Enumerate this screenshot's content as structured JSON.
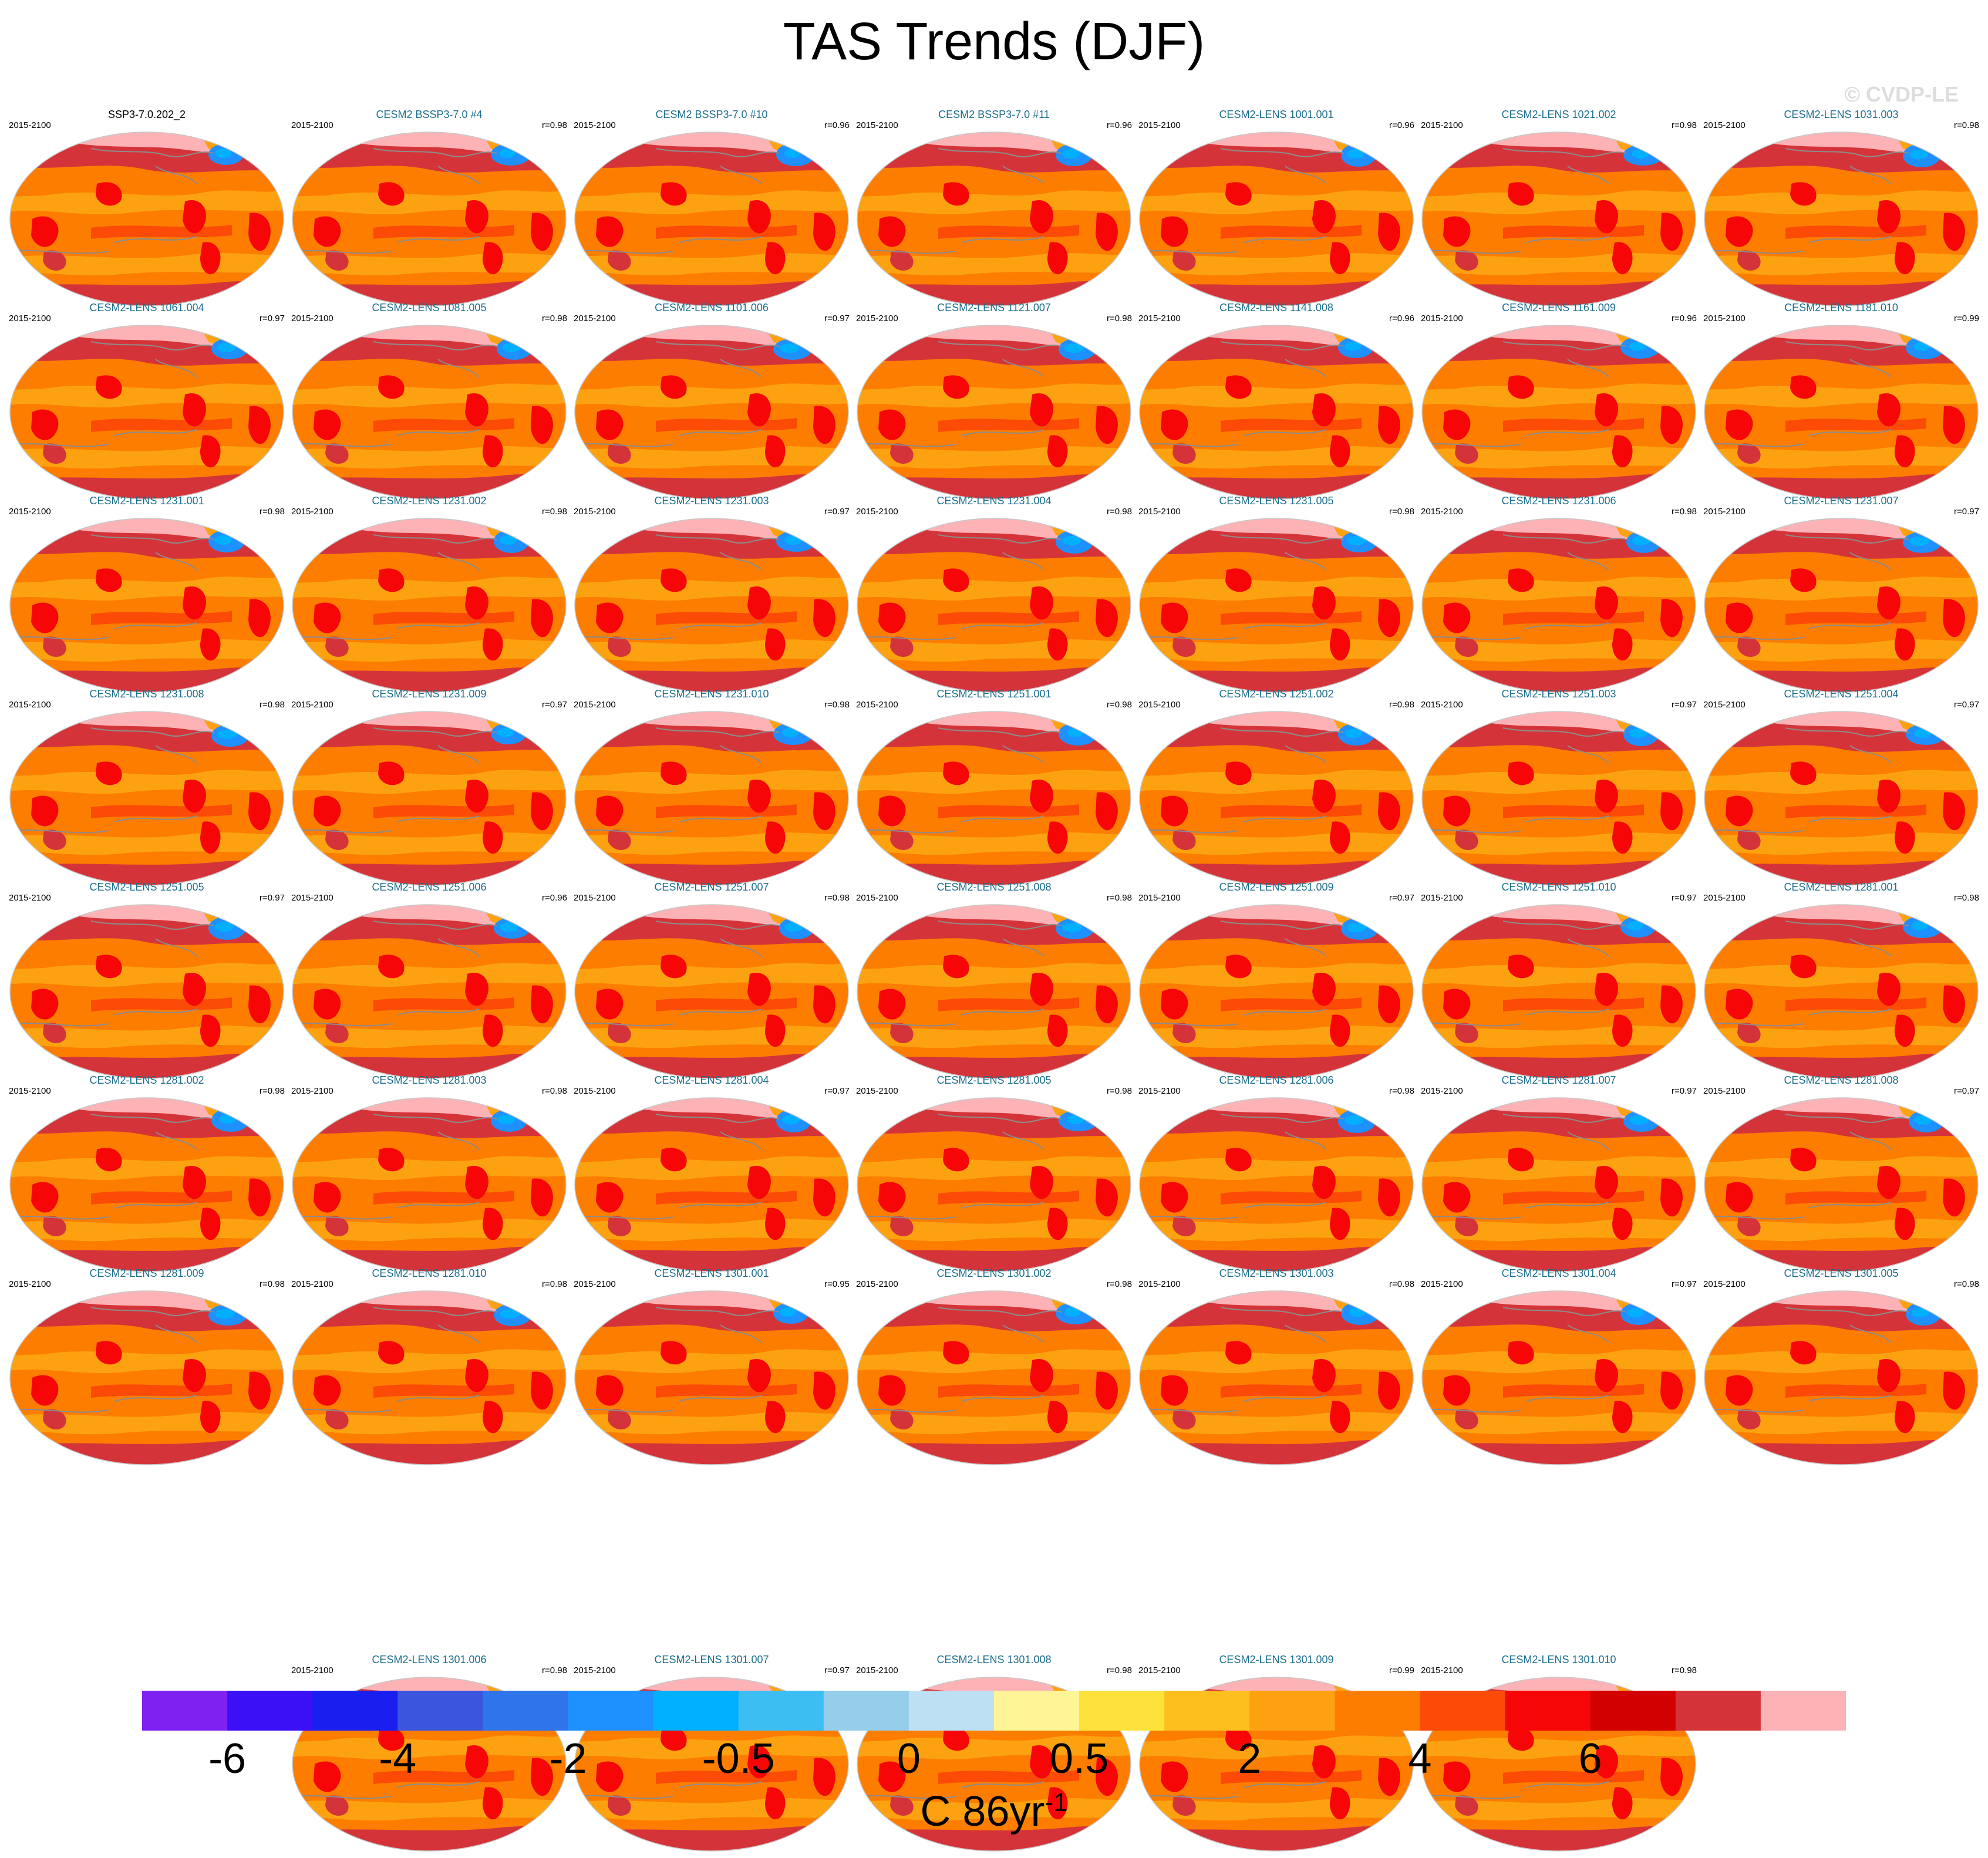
{
  "title": "TAS Trends (DJF)",
  "credit": "© CVDP-LE",
  "period": "2015-2100",
  "panels": [
    {
      "name": "SSP3-7.0.202_2",
      "r": ""
    },
    {
      "name": "CESM2 BSSP3-7.0 #4",
      "r": "r=0.98"
    },
    {
      "name": "CESM2 BSSP3-7.0 #10",
      "r": "r=0.96"
    },
    {
      "name": "CESM2 BSSP3-7.0 #11",
      "r": "r=0.96"
    },
    {
      "name": "CESM2-LENS 1001.001",
      "r": "r=0.96"
    },
    {
      "name": "CESM2-LENS 1021.002",
      "r": "r=0.98"
    },
    {
      "name": "CESM2-LENS 1031.003",
      "r": "r=0.98"
    },
    {
      "name": "CESM2-LENS 1061.004",
      "r": "r=0.97"
    },
    {
      "name": "CESM2-LENS 1081.005",
      "r": "r=0.98"
    },
    {
      "name": "CESM2-LENS 1101.006",
      "r": "r=0.97"
    },
    {
      "name": "CESM2-LENS 1121.007",
      "r": "r=0.98"
    },
    {
      "name": "CESM2-LENS 1141.008",
      "r": "r=0.96"
    },
    {
      "name": "CESM2-LENS 1161.009",
      "r": "r=0.96"
    },
    {
      "name": "CESM2-LENS 1181.010",
      "r": "r=0.99"
    },
    {
      "name": "CESM2-LENS 1231.001",
      "r": "r=0.98"
    },
    {
      "name": "CESM2-LENS 1231.002",
      "r": "r=0.98"
    },
    {
      "name": "CESM2-LENS 1231.003",
      "r": "r=0.97"
    },
    {
      "name": "CESM2-LENS 1231.004",
      "r": "r=0.98"
    },
    {
      "name": "CESM2-LENS 1231.005",
      "r": "r=0.98"
    },
    {
      "name": "CESM2-LENS 1231.006",
      "r": "r=0.98"
    },
    {
      "name": "CESM2-LENS 1231.007",
      "r": "r=0.97"
    },
    {
      "name": "CESM2-LENS 1231.008",
      "r": "r=0.98"
    },
    {
      "name": "CESM2-LENS 1231.009",
      "r": "r=0.97"
    },
    {
      "name": "CESM2-LENS 1231.010",
      "r": "r=0.98"
    },
    {
      "name": "CESM2-LENS 1251.001",
      "r": "r=0.98"
    },
    {
      "name": "CESM2-LENS 1251.002",
      "r": "r=0.98"
    },
    {
      "name": "CESM2-LENS 1251.003",
      "r": "r=0.97"
    },
    {
      "name": "CESM2-LENS 1251.004",
      "r": "r=0.97"
    },
    {
      "name": "CESM2-LENS 1251.005",
      "r": "r=0.97"
    },
    {
      "name": "CESM2-LENS 1251.006",
      "r": "r=0.96"
    },
    {
      "name": "CESM2-LENS 1251.007",
      "r": "r=0.98"
    },
    {
      "name": "CESM2-LENS 1251.008",
      "r": "r=0.98"
    },
    {
      "name": "CESM2-LENS 1251.009",
      "r": "r=0.97"
    },
    {
      "name": "CESM2-LENS 1251.010",
      "r": "r=0.97"
    },
    {
      "name": "CESM2-LENS 1281.001",
      "r": "r=0.98"
    },
    {
      "name": "CESM2-LENS 1281.002",
      "r": "r=0.98"
    },
    {
      "name": "CESM2-LENS 1281.003",
      "r": "r=0.98"
    },
    {
      "name": "CESM2-LENS 1281.004",
      "r": "r=0.97"
    },
    {
      "name": "CESM2-LENS 1281.005",
      "r": "r=0.98"
    },
    {
      "name": "CESM2-LENS 1281.006",
      "r": "r=0.98"
    },
    {
      "name": "CESM2-LENS 1281.007",
      "r": "r=0.97"
    },
    {
      "name": "CESM2-LENS 1281.008",
      "r": "r=0.97"
    },
    {
      "name": "CESM2-LENS 1281.009",
      "r": "r=0.98"
    },
    {
      "name": "CESM2-LENS 1281.010",
      "r": "r=0.98"
    },
    {
      "name": "CESM2-LENS 1301.001",
      "r": "r=0.95"
    },
    {
      "name": "CESM2-LENS 1301.002",
      "r": "r=0.98"
    },
    {
      "name": "CESM2-LENS 1301.003",
      "r": "r=0.98"
    },
    {
      "name": "CESM2-LENS 1301.004",
      "r": "r=0.97"
    },
    {
      "name": "CESM2-LENS 1301.005",
      "r": "r=0.98"
    },
    {
      "name": "CESM2-LENS 1301.006",
      "r": "r=0.98"
    },
    {
      "name": "CESM2-LENS 1301.007",
      "r": "r=0.97"
    },
    {
      "name": "CESM2-LENS 1301.008",
      "r": "r=0.98"
    },
    {
      "name": "CESM2-LENS 1301.009",
      "r": "r=0.99"
    },
    {
      "name": "CESM2-LENS 1301.010",
      "r": "r=0.98"
    }
  ],
  "colorbar": {
    "colors": [
      "#7f22f0",
      "#3b10f5",
      "#1a1ff0",
      "#3b55dc",
      "#2f74ea",
      "#1e90ff",
      "#00b0ff",
      "#3dbef2",
      "#95cdea",
      "#bde0f2",
      "#fef597",
      "#fde23c",
      "#fcbf1e",
      "#fca210",
      "#fc7d00",
      "#fb4b06",
      "#f60606",
      "#d30000",
      "#d43439",
      "#fdb3b6"
    ],
    "labels": [
      "-6",
      "-4",
      "-2",
      "-0.5",
      "0",
      "0.5",
      "2",
      "4",
      "6"
    ],
    "label_boundary_index": [
      2,
      4,
      6,
      8,
      10,
      12,
      14,
      16,
      18
    ]
  },
  "units": {
    "text": "C 86yr",
    "exponent": "-1"
  },
  "colors": {
    "ocean_warm": "#fc7d00",
    "ocean_mild": "#fca210",
    "band": "#fb4b06",
    "land": "#f60606",
    "land_dark": "#d43439",
    "arctic": "#fdb3b6",
    "cold_spot": "#1e90ff",
    "coast": "#8c8c8c",
    "title_blue": "#1c6e8c"
  }
}
